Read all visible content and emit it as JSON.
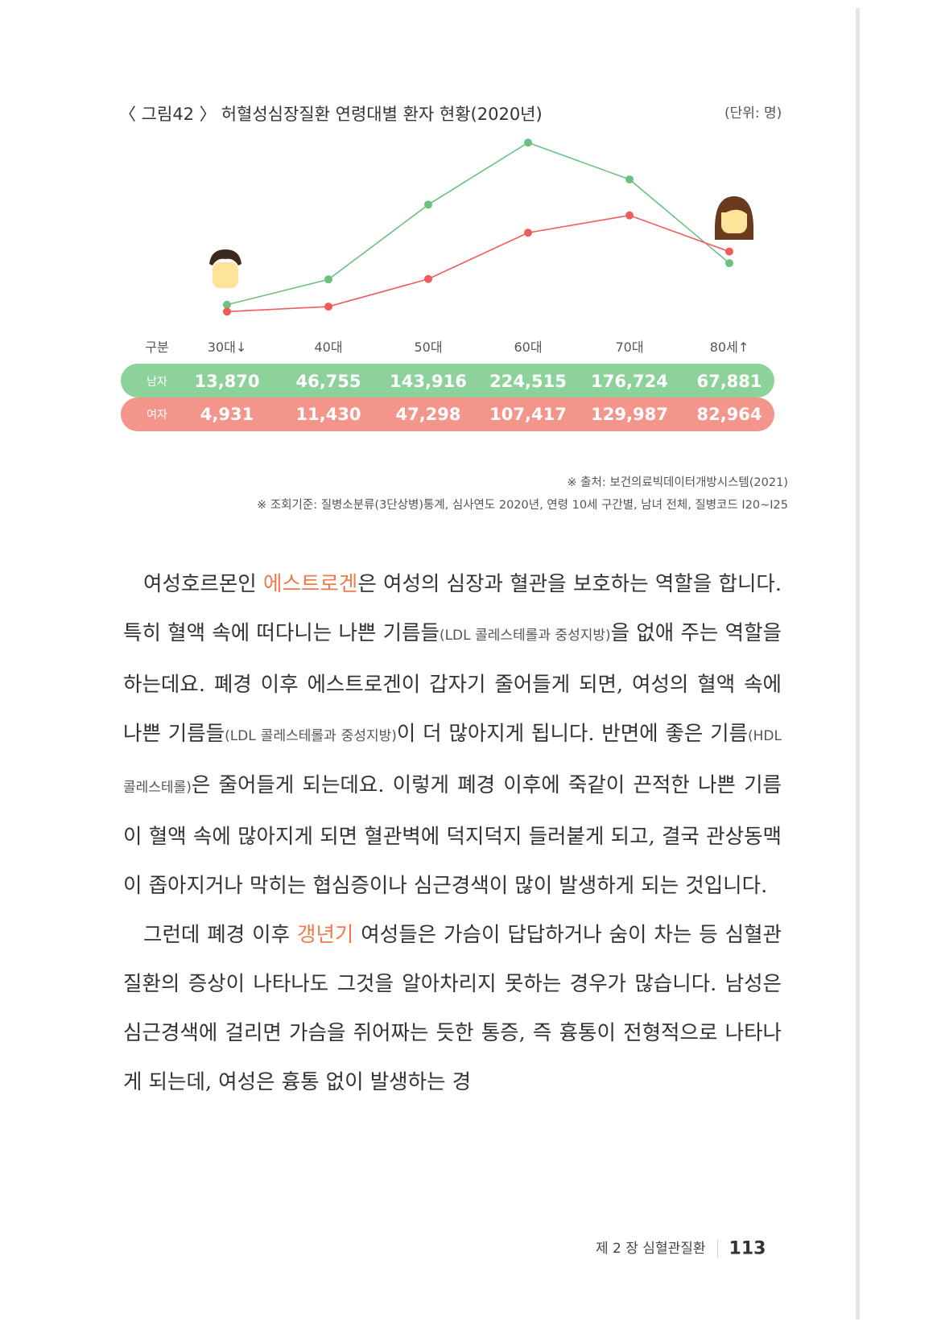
{
  "figure": {
    "label": "〈 그림42 〉",
    "title": "허혈성심장질환 연령대별 환자 현황(2020년)",
    "unit": "(단위: 명)"
  },
  "chart_data": {
    "type": "line",
    "categories": [
      "30대↓",
      "40대",
      "50대",
      "60대",
      "70대",
      "80세↑"
    ],
    "table_header": "구분",
    "series": [
      {
        "name": "남자",
        "values": [
          13870,
          46755,
          143916,
          224515,
          176724,
          67881
        ],
        "labels": [
          "13,870",
          "46,755",
          "143,916",
          "224,515",
          "176,724",
          "67,881"
        ],
        "color": "#6cc17f"
      },
      {
        "name": "여자",
        "values": [
          4931,
          11430,
          47298,
          107417,
          129987,
          82964
        ],
        "labels": [
          "4,931",
          "11,430",
          "47,298",
          "107,417",
          "129,987",
          "82,964"
        ],
        "color": "#ef5b5b"
      }
    ],
    "ylim": [
      0,
      230000
    ],
    "grid": false
  },
  "notes": {
    "source": "※ 출처: 보건의료빅데이터개방시스템(2021)",
    "criteria": "※ 조회기준: 질병소분류(3단상병)통계, 심사연도 2020년, 연령 10세 구간별, 남녀 전체, 질병코드 I20~I25"
  },
  "body": {
    "p1_a": "여성호르몬인 ",
    "p1_hl": "에스트로겐",
    "p1_b": "은 여성의 심장과 혈관을 보호하는 역할을 합니다. 특히 혈액 속에 떠다니는 나쁜 기름들",
    "p1_s1": "(LDL 콜레스테롤과 중성지방)",
    "p1_c": "을 없애 주는 역할을 하는데요. 폐경 이후 에스트로겐이 갑자기 줄어들게 되면, 여성의 혈액 속에 나쁜 기름들",
    "p1_s2": "(LDL 콜레스테롤과 중성지방)",
    "p1_d": "이 더 많아지게 됩니다. 반면에 좋은 기름",
    "p1_s3": "(HDL 콜레스테롤)",
    "p1_e": "은 줄어들게 되는데요. 이렇게 폐경 이후에 죽같이 끈적한 나쁜 기름이 혈액 속에 많아지게 되면 혈관벽에 덕지덕지 들러붙게 되고, 결국 관상동맥이 좁아지거나 막히는 협심증이나 심근경색이 많이 발생하게 되는 것입니다.",
    "p2_a": "그런데 폐경 이후 ",
    "p2_hl": "갱년기",
    "p2_b": " 여성들은 가슴이 답답하거나 숨이 차는 등 심혈관질환의 증상이 나타나도 그것을 알아차리지 못하는 경우가 많습니다. 남성은 심근경색에 걸리면 가슴을 쥐어짜는 듯한 통증, 즉 흉통이 전형적으로 나타나게 되는데, 여성은 흉통 없이 발생하는 경"
  },
  "footer": {
    "chapter": "제 2 장  심혈관질환",
    "page": "113"
  }
}
